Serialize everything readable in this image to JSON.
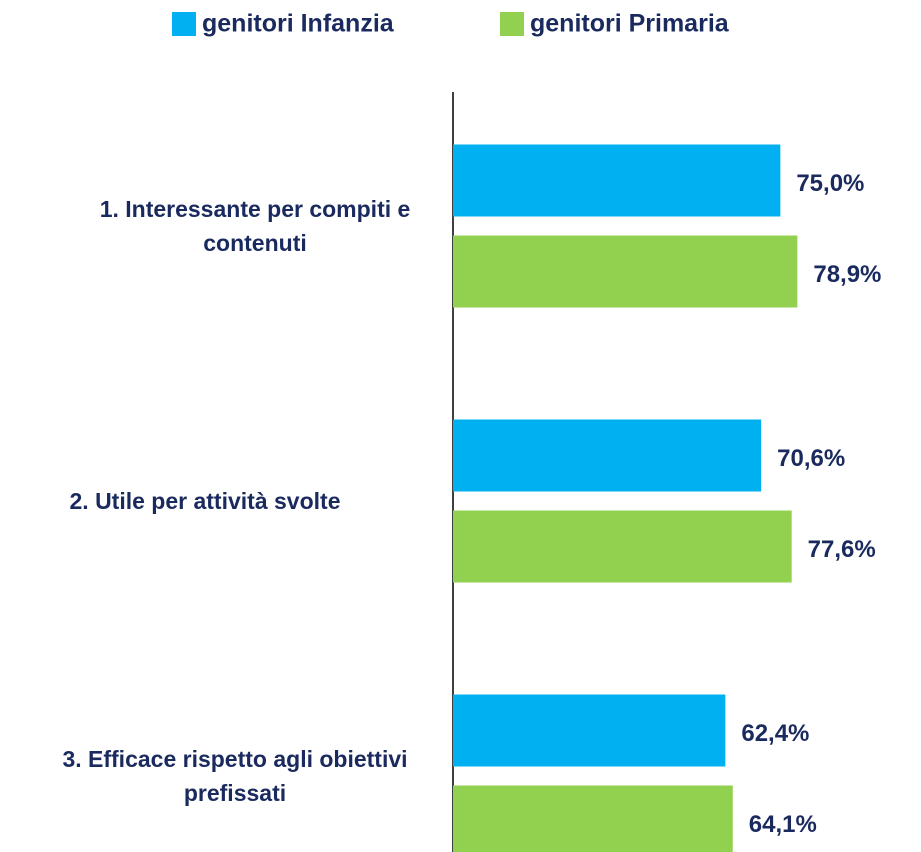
{
  "chart_data": {
    "type": "bar",
    "orientation": "horizontal",
    "categories": [
      "1. Interessante per compiti e contenuti",
      "2. Utile per attività svolte",
      "3. Efficace rispetto agli obiettivi prefissati"
    ],
    "series": [
      {
        "name": "genitori Infanzia",
        "color": "#00b0f0",
        "values": [
          75.0,
          70.6,
          62.4
        ],
        "value_labels": [
          "75,0%",
          "70,6%",
          "62,4%"
        ]
      },
      {
        "name": "genitori Primaria",
        "color": "#92d050",
        "values": [
          78.9,
          77.6,
          64.1
        ],
        "value_labels": [
          "78,9%",
          "77,6%",
          "64,1%"
        ]
      }
    ],
    "xlim": [
      0,
      107
    ],
    "legend": "top"
  }
}
